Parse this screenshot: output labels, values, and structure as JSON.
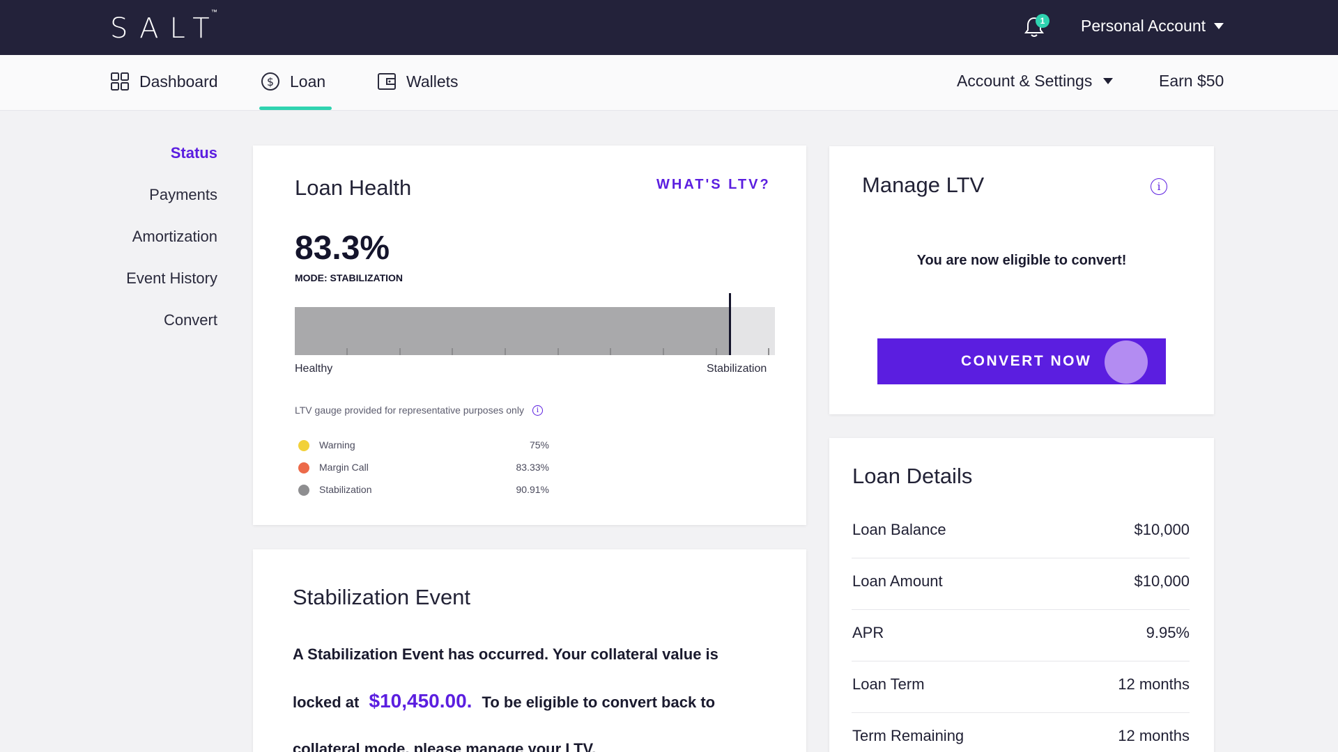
{
  "header": {
    "logo": "SALT",
    "logo_tm": "™",
    "notification_count": "1",
    "account_label": "Personal Account"
  },
  "nav": {
    "dashboard": "Dashboard",
    "loan": "Loan",
    "wallets": "Wallets",
    "account_settings": "Account & Settings",
    "earn": "Earn $50"
  },
  "sidebar": {
    "items": [
      "Status",
      "Payments",
      "Amortization",
      "Event History",
      "Convert"
    ]
  },
  "loan_health": {
    "title": "Loan Health",
    "whats_ltv": "WHAT'S LTV?",
    "ltv_value": "83.3%",
    "mode": "MODE: STABILIZATION",
    "gauge_level": 0.905,
    "gauge_left_label": "Healthy",
    "gauge_right_label": "Stabilization",
    "disclaimer": "LTV gauge provided for representative purposes only",
    "legend": [
      {
        "label": "Warning",
        "value": "75%",
        "color": "#f2d13a"
      },
      {
        "label": "Margin Call",
        "value": "83.33%",
        "color": "#ec6a4a"
      },
      {
        "label": "Stabilization",
        "value": "90.91%",
        "color": "#8e8e90"
      }
    ]
  },
  "manage_ltv": {
    "title": "Manage LTV",
    "eligible_text": "You are now eligible to convert!",
    "convert_button": "CONVERT NOW"
  },
  "loan_details": {
    "title": "Loan Details",
    "rows": [
      {
        "label": "Loan Balance",
        "value": "$10,000"
      },
      {
        "label": "Loan Amount",
        "value": "$10,000"
      },
      {
        "label": "APR",
        "value": "9.95%"
      },
      {
        "label": "Loan Term",
        "value": "12 months"
      },
      {
        "label": "Term Remaining",
        "value": "12 months"
      }
    ]
  },
  "stabilization_event": {
    "title": "Stabilization Event",
    "text_before": "A Stabilization Event has occurred. Your collateral value is locked at",
    "amount": "$10,450.00.",
    "text_after": "To be eligible to convert back to collateral mode, please manage your LTV."
  },
  "colors": {
    "topbar": "#23223a",
    "accent": "#5b1ee0",
    "teal": "#2fd3b0"
  }
}
